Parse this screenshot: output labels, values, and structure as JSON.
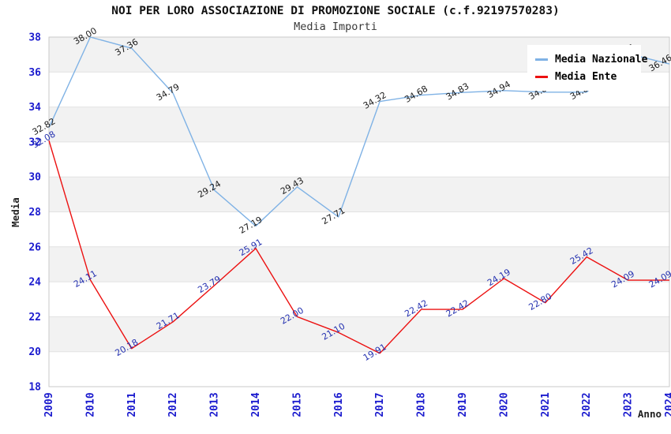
{
  "chart_data": {
    "type": "line",
    "title": "NOI PER LORO ASSOCIAZIONE DI PROMOZIONE SOCIALE (c.f.92197570283)",
    "subtitle": "Media Importi",
    "xlabel": "Anno",
    "ylabel": "Media",
    "ylim": [
      18,
      38
    ],
    "yticks": [
      18,
      20,
      22,
      24,
      26,
      28,
      30,
      32,
      34,
      36,
      38
    ],
    "categories": [
      "2009",
      "2010",
      "2011",
      "2012",
      "2013",
      "2014",
      "2015",
      "2016",
      "2017",
      "2018",
      "2019",
      "2020",
      "2021",
      "2022",
      "2023",
      "2024"
    ],
    "series": [
      {
        "name": "Media Nazionale",
        "color": "#7fb2e5",
        "label_color": "#1c1c1c",
        "values": [
          32.82,
          38.0,
          37.36,
          34.79,
          29.24,
          27.19,
          29.43,
          27.71,
          34.32,
          34.68,
          34.83,
          34.94,
          34.85,
          34.85,
          37.05,
          36.46
        ]
      },
      {
        "name": "Media Ente",
        "color": "#ec1111",
        "label_color": "#2431b0",
        "values": [
          32.08,
          24.11,
          20.18,
          21.71,
          23.79,
          25.91,
          22.0,
          21.1,
          19.91,
          22.42,
          22.42,
          24.19,
          22.8,
          25.42,
          24.09,
          24.09
        ]
      }
    ],
    "legend": {
      "position": "top-right",
      "entries": [
        "Media Nazionale",
        "Media Ente"
      ]
    },
    "grid": {
      "horizontal_bands": true,
      "band_color": "#f2f2f2",
      "line_color": "#e2e2e2",
      "border_color": "#c9c9c9"
    },
    "axis_tick_color": "#1a1ace",
    "axis_title_color": "#222222"
  }
}
